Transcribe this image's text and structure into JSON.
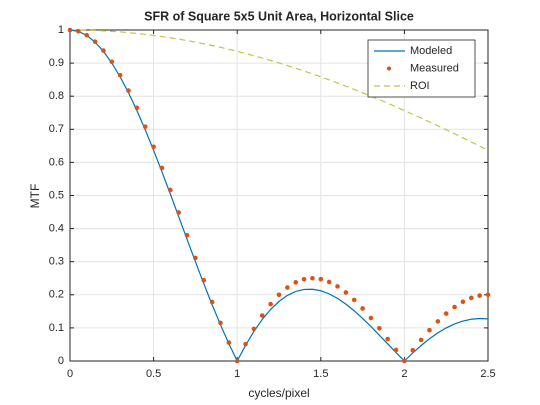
{
  "chart_data": {
    "type": "line",
    "title": "SFR of Square 5x5 Unit Area, Horizontal Slice",
    "x_label": "cycles/pixel",
    "y_label": "MTF",
    "x": [
      0,
      0.05,
      0.1,
      0.15,
      0.2,
      0.25,
      0.3,
      0.35,
      0.4,
      0.45,
      0.5,
      0.55,
      0.6,
      0.65,
      0.7,
      0.75,
      0.8,
      0.85,
      0.9,
      0.95,
      1,
      1.05,
      1.1,
      1.15,
      1.2,
      1.25,
      1.3,
      1.35,
      1.4,
      1.45,
      1.5,
      1.55,
      1.6,
      1.65,
      1.7,
      1.75,
      1.8,
      1.85,
      1.9,
      1.95,
      2,
      2.05,
      2.1,
      2.15,
      2.2,
      2.25,
      2.3,
      2.35,
      2.4,
      2.45,
      2.5
    ],
    "series": [
      {
        "name": "Modeled",
        "color": "#0072bd",
        "style": "solid",
        "values": [
          1,
          0.9959,
          0.9836,
          0.9634,
          0.9355,
          0.9003,
          0.8584,
          0.8103,
          0.7568,
          0.6987,
          0.6366,
          0.5716,
          0.5046,
          0.4363,
          0.3679,
          0.3001,
          0.2339,
          0.17,
          0.1093,
          0.0524,
          0,
          0.0474,
          0.0894,
          0.1257,
          0.1559,
          0.1801,
          0.1981,
          0.2101,
          0.2162,
          0.2168,
          0.2122,
          0.2028,
          0.1892,
          0.1719,
          0.1515,
          0.1286,
          0.1039,
          0.0781,
          0.0518,
          0.0255,
          0,
          0.0243,
          0.0468,
          0.0672,
          0.085,
          0.1,
          0.112,
          0.1207,
          0.1261,
          0.1283,
          0.1273
        ]
      },
      {
        "name": "Measured",
        "color": "#d95319",
        "style": "dots",
        "values": [
          1,
          0.9961,
          0.9843,
          0.9648,
          0.938,
          0.904,
          0.8635,
          0.8169,
          0.7649,
          0.7081,
          0.6472,
          0.5832,
          0.5167,
          0.4487,
          0.38,
          0.3115,
          0.244,
          0.1784,
          0.1153,
          0.0557,
          0,
          0.051,
          0.097,
          0.1373,
          0.1717,
          0.2,
          0.222,
          0.2376,
          0.2469,
          0.25,
          0.2472,
          0.2388,
          0.2253,
          0.207,
          0.1846,
          0.1587,
          0.1299,
          0.0989,
          0.0665,
          0.0333,
          0,
          0.0326,
          0.0638,
          0.093,
          0.1197,
          0.1432,
          0.1631,
          0.179,
          0.1906,
          0.1976,
          0.2
        ]
      },
      {
        "name": "ROI",
        "color": "#c4c44a",
        "style": "dashed",
        "values": [
          1,
          0.9998,
          0.9993,
          0.9985,
          0.9974,
          0.9959,
          0.9941,
          0.992,
          0.9895,
          0.9867,
          0.9836,
          0.9802,
          0.9765,
          0.9724,
          0.9681,
          0.9634,
          0.9584,
          0.9531,
          0.9476,
          0.9417,
          0.9355,
          0.929,
          0.9223,
          0.9152,
          0.9079,
          0.9003,
          0.8925,
          0.8843,
          0.8759,
          0.8673,
          0.8584,
          0.8493,
          0.8399,
          0.8303,
          0.8204,
          0.8103,
          0.8,
          0.7895,
          0.7788,
          0.7679,
          0.7568,
          0.7455,
          0.7341,
          0.7224,
          0.7106,
          0.6987,
          0.6865,
          0.6743,
          0.6618,
          0.6493,
          0.6366
        ]
      }
    ],
    "xlim": [
      0,
      2.5
    ],
    "ylim": [
      0,
      1
    ],
    "xticks": [
      0,
      0.5,
      1,
      1.5,
      2,
      2.5
    ],
    "yticks": [
      0,
      0.1,
      0.2,
      0.3,
      0.4,
      0.5,
      0.6,
      0.7,
      0.8,
      0.9,
      1
    ],
    "grid": true,
    "legend": "top-right"
  }
}
